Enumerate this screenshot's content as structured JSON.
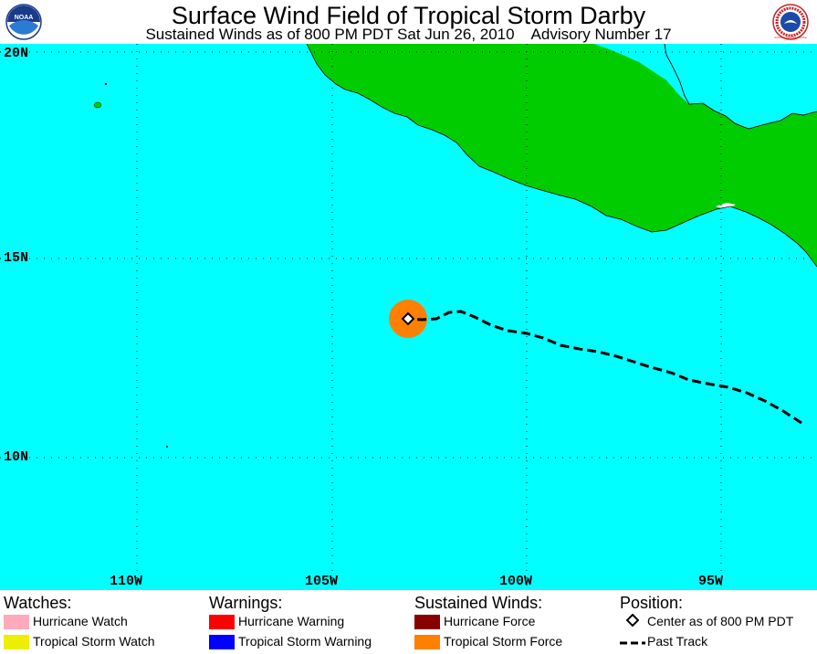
{
  "header": {
    "title": "Surface Wind Field of Tropical Storm Darby",
    "subtitle": "Sustained Winds as of 800 PM PDT Sat Jun 26, 2010    Advisory Number 17",
    "logo_left_text": "NOAA",
    "logo_right_text": "NATIONAL WEATHER SERVICE"
  },
  "map": {
    "ocean_color": "#00ffff",
    "land_color": "#00cc00",
    "lat_labels": [
      {
        "label": "20N"
      },
      {
        "label": "15N"
      },
      {
        "label": "10N"
      }
    ],
    "lon_labels": [
      {
        "label": "110W"
      },
      {
        "label": "105W"
      },
      {
        "label": "100W"
      },
      {
        "label": "95W"
      }
    ],
    "storm_center": {
      "lat": 13.5,
      "lon": -102.8
    },
    "ts_force_color": "#ff8000"
  },
  "legend": {
    "watches": {
      "heading": "Watches:",
      "items": [
        {
          "label": "Hurricane Watch",
          "color": "#ffaabb"
        },
        {
          "label": "Tropical Storm Watch",
          "color": "#eeee00"
        }
      ]
    },
    "warnings": {
      "heading": "Warnings:",
      "items": [
        {
          "label": "Hurricane Warning",
          "color": "#ff0000"
        },
        {
          "label": "Tropical Storm Warning",
          "color": "#0000ff"
        }
      ]
    },
    "winds": {
      "heading": "Sustained Winds:",
      "items": [
        {
          "label": "Hurricane Force",
          "color": "#880000"
        },
        {
          "label": "Tropical Storm Force",
          "color": "#ff8000"
        }
      ]
    },
    "position": {
      "heading": "Position:",
      "center_label": "Center as of 800 PM PDT",
      "track_label": "Past Track"
    }
  }
}
